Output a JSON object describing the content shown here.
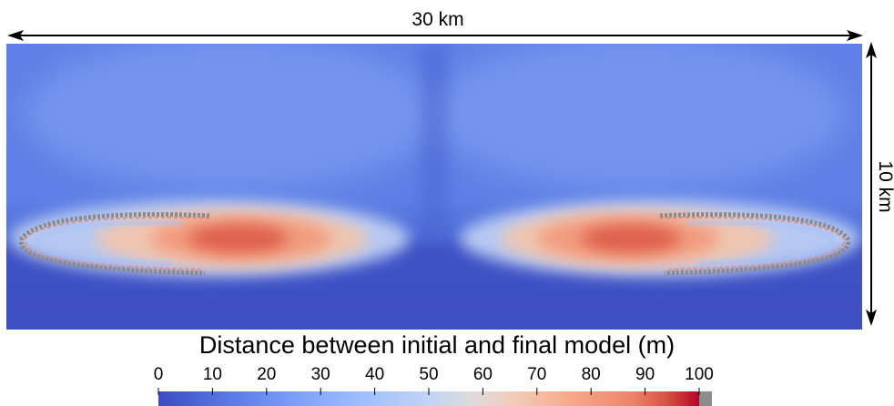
{
  "figure": {
    "width_label": "30 km",
    "height_label": "10 km"
  },
  "colorbar": {
    "title": "Distance between initial and final model (m)",
    "ticks": [
      "0",
      "10",
      "20",
      "30",
      "40",
      "50",
      "60",
      "70",
      "80",
      "90",
      "100"
    ],
    "range": [
      0,
      100
    ],
    "colormap": "coolwarm",
    "above_range_color": "#8c8c8c"
  },
  "colors": {
    "low": "#3b4cc0",
    "mid": "#dddddd",
    "high": "#b40426"
  }
}
